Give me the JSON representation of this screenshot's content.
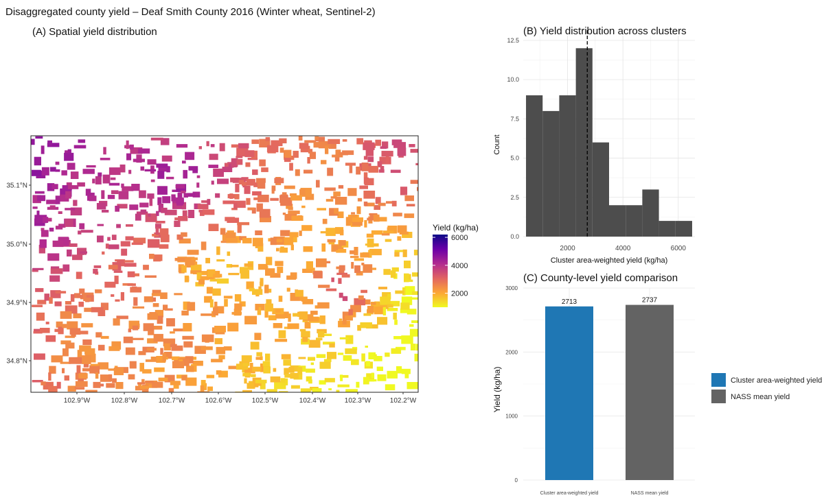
{
  "page_title": "Disaggregated county yield – Deaf Smith County 2016 (Winter wheat, Sentinel-2)",
  "chart_data": [
    {
      "type": "map",
      "panel_title": "(A) Spatial yield distribution",
      "x_ticks": [
        "102.9°W",
        "102.8°W",
        "102.7°W",
        "102.6°W",
        "102.5°W",
        "102.4°W",
        "102.3°W",
        "102.2°W"
      ],
      "y_ticks": [
        "35.1°N",
        "35.0°N",
        "34.9°N",
        "34.8°N"
      ],
      "legend": {
        "title": "Yield (kg/ha)",
        "ticks": [
          "6000",
          "4000",
          "2000"
        ],
        "colormap": "plasma",
        "min": 1000,
        "max": 6200
      }
    },
    {
      "type": "bar",
      "subtype": "histogram",
      "panel_title": "(B) Yield distribution across clusters",
      "xlabel": "Cluster area-weighted yield (kg/ha)",
      "ylabel": "Count",
      "bins": [
        {
          "x0": 500,
          "x1": 1100,
          "count": 9
        },
        {
          "x0": 1100,
          "x1": 1700,
          "count": 8
        },
        {
          "x0": 1700,
          "x1": 2300,
          "count": 9
        },
        {
          "x0": 2300,
          "x1": 2900,
          "count": 12
        },
        {
          "x0": 2900,
          "x1": 3500,
          "count": 6
        },
        {
          "x0": 3500,
          "x1": 4100,
          "count": 2
        },
        {
          "x0": 4100,
          "x1": 4700,
          "count": 2
        },
        {
          "x0": 4700,
          "x1": 5300,
          "count": 3
        },
        {
          "x0": 5300,
          "x1": 5900,
          "count": 1
        },
        {
          "x0": 5900,
          "x1": 6500,
          "count": 1
        }
      ],
      "reference_line": 2713,
      "xlim": [
        400,
        6600
      ],
      "ylim": [
        0,
        12.8
      ],
      "x_ticks": [
        2000,
        4000,
        6000
      ],
      "y_ticks": [
        "0.0",
        "2.5",
        "5.0",
        "7.5",
        "10.0",
        "12.5"
      ],
      "bar_color": "#4d4d4d"
    },
    {
      "type": "bar",
      "panel_title": "(C) County-level yield comparison",
      "categories": [
        "Cluster area-weighted yield",
        "NASS mean yield"
      ],
      "values": [
        2713,
        2737
      ],
      "colors": [
        "#1f77b4",
        "#636363"
      ],
      "ylabel": "Yield (kg/ha)",
      "ylim": [
        0,
        3000
      ],
      "y_ticks": [
        0,
        1000,
        2000,
        3000
      ],
      "legend": [
        {
          "label": "Cluster area-weighted yield",
          "color": "#1f77b4"
        },
        {
          "label": "NASS mean yield",
          "color": "#636363"
        }
      ]
    }
  ]
}
